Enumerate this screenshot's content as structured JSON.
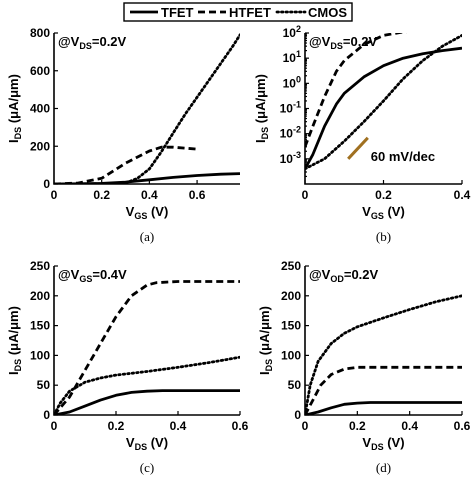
{
  "legend": {
    "entries": [
      {
        "name": "TFET",
        "style": "solid"
      },
      {
        "name": "HTFET",
        "style": "dashed"
      },
      {
        "name": "CMOS",
        "style": "dotted"
      }
    ]
  },
  "chart_data": [
    {
      "type": "line",
      "caption": "(a)",
      "condition": {
        "main": "@V",
        "sub": "DS",
        "rest": "=0.2V"
      },
      "ylabel": {
        "main": "I",
        "sub": "DS",
        "rest": " (μA/μm)"
      },
      "xlabel": {
        "main": "V",
        "sub": "GS",
        "rest": " (V)"
      },
      "yscale": "linear",
      "xlim": [
        0,
        0.78
      ],
      "ylim": [
        0,
        800
      ],
      "xticks": [
        0,
        0.2,
        0.4,
        0.6
      ],
      "xtick_labels": [
        "0",
        "0.2",
        "0.4",
        "0.6"
      ],
      "yticks": [
        0,
        200,
        400,
        600,
        800
      ],
      "ytick_labels": [
        "0",
        "200",
        "400",
        "600",
        "800"
      ],
      "series": [
        {
          "name": "TFET",
          "style": "solid",
          "x": [
            0,
            0.1,
            0.2,
            0.3,
            0.4,
            0.5,
            0.6,
            0.7,
            0.78
          ],
          "y": [
            0,
            1,
            3,
            10,
            22,
            35,
            45,
            52,
            55
          ]
        },
        {
          "name": "HTFET",
          "style": "dashed",
          "x": [
            0,
            0.1,
            0.2,
            0.3,
            0.4,
            0.45,
            0.5,
            0.6
          ],
          "y": [
            0,
            5,
            30,
            110,
            175,
            195,
            195,
            185
          ]
        },
        {
          "name": "CMOS",
          "style": "dotted",
          "x": [
            0,
            0.2,
            0.3,
            0.35,
            0.4,
            0.45,
            0.5,
            0.55,
            0.6,
            0.65,
            0.7,
            0.75,
            0.78
          ],
          "y": [
            0,
            1,
            5,
            30,
            80,
            170,
            270,
            370,
            460,
            550,
            640,
            730,
            790
          ]
        }
      ]
    },
    {
      "type": "line",
      "caption": "(b)",
      "condition": {
        "main": "@V",
        "sub": "DS",
        "rest": "=0.2V"
      },
      "ylabel": {
        "main": "I",
        "sub": "DS",
        "rest": " (μA/μm)"
      },
      "xlabel": {
        "main": "V",
        "sub": "GS",
        "rest": " (V)"
      },
      "yscale": "log",
      "xlim": [
        0,
        0.4
      ],
      "ylim": [
        0.0001,
        100
      ],
      "xticks": [
        0,
        0.2,
        0.4
      ],
      "xtick_labels": [
        "0",
        "0.2",
        "0.4"
      ],
      "yticks": [
        0.001,
        0.01,
        0.1,
        1,
        10,
        100
      ],
      "ytick_labels": [
        {
          "base": "10",
          "exp": "-3"
        },
        {
          "base": "10",
          "exp": "-2"
        },
        {
          "base": "10",
          "exp": "-1"
        },
        {
          "base": "10",
          "exp": "0"
        },
        {
          "base": "10",
          "exp": "1"
        },
        {
          "base": "10",
          "exp": "2"
        }
      ],
      "annotation": {
        "text": "60 mV/dec",
        "color": "#a07020",
        "slope_decades_per_volt": 16.7
      },
      "series": [
        {
          "name": "TFET",
          "style": "solid",
          "x": [
            0,
            0.02,
            0.05,
            0.08,
            0.1,
            0.15,
            0.2,
            0.25,
            0.3,
            0.35,
            0.4
          ],
          "y": [
            0.0004,
            0.0015,
            0.02,
            0.15,
            0.4,
            1.8,
            5,
            10,
            15,
            20,
            25
          ]
        },
        {
          "name": "HTFET",
          "style": "dashed",
          "x": [
            0,
            0.02,
            0.05,
            0.08,
            0.1,
            0.15,
            0.2,
            0.25,
            0.3,
            0.35,
            0.4
          ],
          "y": [
            0.003,
            0.02,
            0.3,
            3,
            8,
            35,
            80,
            110,
            130,
            140,
            150
          ]
        },
        {
          "name": "CMOS",
          "style": "dotted",
          "x": [
            0,
            0.05,
            0.1,
            0.15,
            0.2,
            0.25,
            0.3,
            0.35,
            0.4
          ],
          "y": [
            0.0004,
            0.001,
            0.005,
            0.03,
            0.2,
            1.5,
            8,
            30,
            80
          ]
        }
      ]
    },
    {
      "type": "line",
      "caption": "(c)",
      "condition": {
        "main": "@V",
        "sub": "GS",
        "rest": "=0.4V"
      },
      "ylabel": {
        "main": "I",
        "sub": "DS",
        "rest": " (μA/μm)"
      },
      "xlabel": {
        "main": "V",
        "sub": "DS",
        "rest": " (V)"
      },
      "yscale": "linear",
      "xlim": [
        0,
        0.6
      ],
      "ylim": [
        0,
        250
      ],
      "xticks": [
        0,
        0.2,
        0.4,
        0.6
      ],
      "xtick_labels": [
        "0",
        "0.2",
        "0.4",
        "0.6"
      ],
      "yticks": [
        0,
        50,
        100,
        150,
        200,
        250
      ],
      "ytick_labels": [
        "0",
        "50",
        "100",
        "150",
        "200",
        "250"
      ],
      "series": [
        {
          "name": "TFET",
          "style": "solid",
          "x": [
            0,
            0.05,
            0.1,
            0.15,
            0.2,
            0.25,
            0.3,
            0.35,
            0.4,
            0.5,
            0.6
          ],
          "y": [
            0,
            5,
            15,
            25,
            33,
            38,
            40,
            41,
            41,
            41,
            41
          ]
        },
        {
          "name": "HTFET",
          "style": "dashed",
          "x": [
            0,
            0.05,
            0.1,
            0.15,
            0.2,
            0.25,
            0.3,
            0.33,
            0.4,
            0.5,
            0.6
          ],
          "y": [
            0,
            30,
            75,
            120,
            165,
            200,
            218,
            222,
            224,
            224,
            224
          ]
        },
        {
          "name": "CMOS",
          "style": "dotted",
          "x": [
            0,
            0.02,
            0.05,
            0.1,
            0.15,
            0.2,
            0.3,
            0.4,
            0.5,
            0.6
          ],
          "y": [
            0,
            20,
            40,
            55,
            62,
            67,
            73,
            80,
            88,
            97
          ]
        }
      ]
    },
    {
      "type": "line",
      "caption": "(d)",
      "condition": {
        "main": "@V",
        "sub": "OD",
        "rest": "=0.2V"
      },
      "ylabel": {
        "main": "I",
        "sub": "DS",
        "rest": " (μA/μm)"
      },
      "xlabel": {
        "main": "V",
        "sub": "DS",
        "rest": " (V)"
      },
      "yscale": "linear",
      "xlim": [
        0,
        0.6
      ],
      "ylim": [
        0,
        250
      ],
      "xticks": [
        0,
        0.2,
        0.4,
        0.6
      ],
      "xtick_labels": [
        "0",
        "0.2",
        "0.4",
        "0.6"
      ],
      "yticks": [
        0,
        50,
        100,
        150,
        200,
        250
      ],
      "ytick_labels": [
        "0",
        "50",
        "100",
        "150",
        "200",
        "250"
      ],
      "series": [
        {
          "name": "TFET",
          "style": "solid",
          "x": [
            0,
            0.05,
            0.1,
            0.15,
            0.2,
            0.25,
            0.3,
            0.4,
            0.5,
            0.6
          ],
          "y": [
            0,
            5,
            12,
            18,
            20,
            21,
            21,
            21,
            21,
            21
          ]
        },
        {
          "name": "HTFET",
          "style": "dashed",
          "x": [
            0,
            0.03,
            0.06,
            0.1,
            0.15,
            0.2,
            0.25,
            0.3,
            0.4,
            0.5,
            0.6
          ],
          "y": [
            0,
            25,
            50,
            68,
            77,
            80,
            80,
            80,
            80,
            80,
            80
          ]
        },
        {
          "name": "CMOS",
          "style": "dotted",
          "x": [
            0,
            0.02,
            0.05,
            0.1,
            0.15,
            0.2,
            0.3,
            0.4,
            0.5,
            0.6
          ],
          "y": [
            0,
            50,
            90,
            120,
            137,
            148,
            163,
            177,
            190,
            200
          ]
        }
      ]
    }
  ]
}
